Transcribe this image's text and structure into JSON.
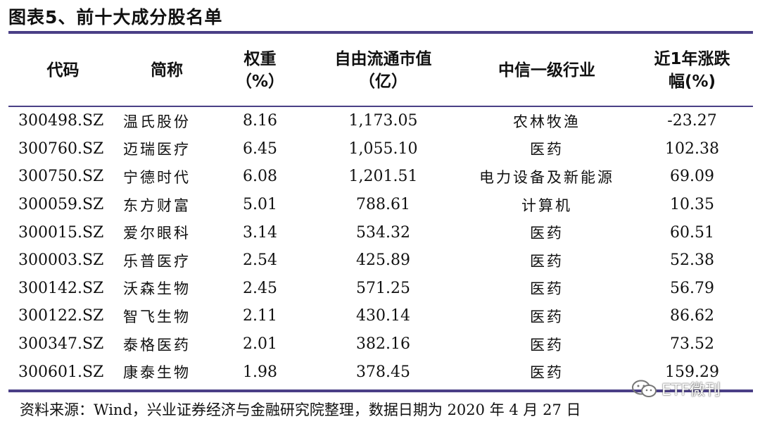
{
  "title": "图表5、前十大成分股名单",
  "table": {
    "headers": {
      "code": "代码",
      "name": "简称",
      "weight_l1": "权重",
      "weight_l2": "（%）",
      "mcap_l1": "自由流通市值",
      "mcap_l2": "（亿）",
      "industry": "中信一级行业",
      "chg_l1": "近1年涨跌",
      "chg_l2": "幅(%)"
    },
    "rows": [
      {
        "code": "300498.SZ",
        "name": "温氏股份",
        "weight": "8.16",
        "mcap": "1,173.05",
        "industry": "农林牧渔",
        "change": "-23.27"
      },
      {
        "code": "300760.SZ",
        "name": "迈瑞医疗",
        "weight": "6.45",
        "mcap": "1,055.10",
        "industry": "医药",
        "change": "102.38"
      },
      {
        "code": "300750.SZ",
        "name": "宁德时代",
        "weight": "6.08",
        "mcap": "1,201.51",
        "industry": "电力设备及新能源",
        "change": "69.09"
      },
      {
        "code": "300059.SZ",
        "name": "东方财富",
        "weight": "5.01",
        "mcap": "788.61",
        "industry": "计算机",
        "change": "10.35"
      },
      {
        "code": "300015.SZ",
        "name": "爱尔眼科",
        "weight": "3.14",
        "mcap": "534.32",
        "industry": "医药",
        "change": "60.51"
      },
      {
        "code": "300003.SZ",
        "name": "乐普医疗",
        "weight": "2.54",
        "mcap": "425.89",
        "industry": "医药",
        "change": "52.38"
      },
      {
        "code": "300142.SZ",
        "name": "沃森生物",
        "weight": "2.45",
        "mcap": "571.25",
        "industry": "医药",
        "change": "56.79"
      },
      {
        "code": "300122.SZ",
        "name": "智飞生物",
        "weight": "2.11",
        "mcap": "430.14",
        "industry": "医药",
        "change": "86.62"
      },
      {
        "code": "300347.SZ",
        "name": "泰格医药",
        "weight": "2.01",
        "mcap": "382.16",
        "industry": "医药",
        "change": "73.52"
      },
      {
        "code": "300601.SZ",
        "name": "康泰生物",
        "weight": "1.98",
        "mcap": "378.45",
        "industry": "医药",
        "change": "159.29"
      }
    ]
  },
  "source": "资料来源：Wind，兴业证券经济与金融研究院整理，数据日期为 2020 年 4 月 27 日",
  "watermark": {
    "text": "ETF微刊",
    "icon": "wechat-icon"
  },
  "colors": {
    "rule": "#4a3f86"
  }
}
